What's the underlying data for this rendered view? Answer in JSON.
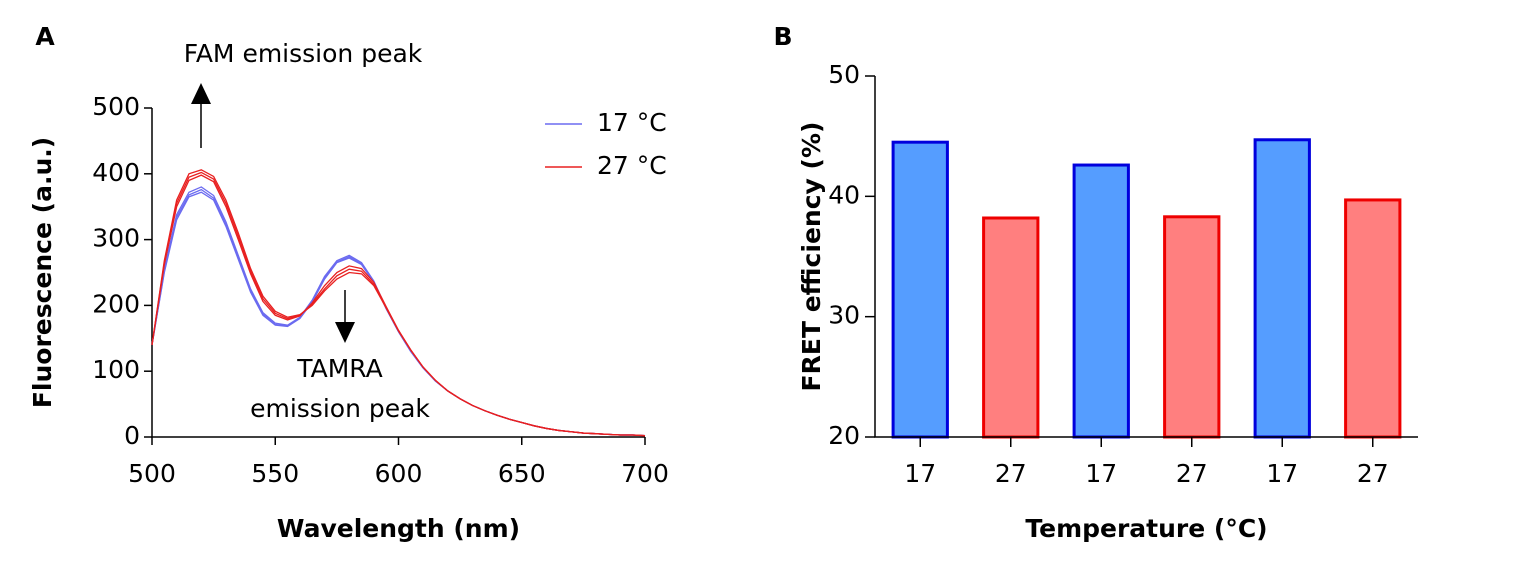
{
  "chart_data": [
    {
      "type": "line",
      "panel": "A",
      "xlabel": "Wavelength (nm)",
      "ylabel": "Fluorescence (a.u.)",
      "annotations": [
        "FAM emission peak",
        "TAMRA",
        "emission peak"
      ],
      "x": [
        500,
        505,
        510,
        515,
        520,
        525,
        530,
        535,
        540,
        545,
        550,
        555,
        560,
        565,
        570,
        575,
        580,
        585,
        590,
        595,
        600,
        605,
        610,
        615,
        620,
        625,
        630,
        635,
        640,
        645,
        650,
        655,
        660,
        665,
        670,
        675,
        680,
        685,
        690,
        695,
        700
      ],
      "xlim": [
        500,
        700
      ],
      "xticks": [
        500,
        550,
        600,
        650,
        700
      ],
      "ylim": [
        0,
        500
      ],
      "yticks": [
        0,
        100,
        200,
        300,
        400,
        500
      ],
      "series": [
        {
          "name": "17 °C",
          "color": "#6b6bf0",
          "lines": [
            [
              140,
              250,
              330,
              365,
              372,
              360,
              320,
              270,
              220,
              185,
              170,
              168,
              180,
              205,
              240,
              265,
              272,
              262,
              235,
              195,
              160,
              130,
              105,
              85,
              70,
              58,
              48,
              40,
              33,
              27,
              22,
              17,
              13,
              10,
              8,
              6,
              5,
              4,
              3,
              3,
              2
            ],
            [
              140,
              255,
              338,
              372,
              380,
              367,
              327,
              276,
              225,
              189,
              173,
              170,
              182,
              208,
              244,
              268,
              276,
              265,
              237,
              196,
              160,
              130,
              105,
              85,
              70,
              58,
              48,
              40,
              33,
              27,
              22,
              17,
              13,
              10,
              8,
              6,
              5,
              4,
              3,
              3,
              2
            ],
            [
              140,
              252,
              334,
              368,
              376,
              363,
              323,
              272,
              222,
              187,
              171,
              169,
              181,
              206,
              242,
              266,
              274,
              263,
              236,
              195,
              160,
              130,
              105,
              85,
              70,
              58,
              48,
              40,
              33,
              27,
              22,
              17,
              13,
              10,
              8,
              6,
              5,
              4,
              3,
              3,
              2
            ]
          ]
        },
        {
          "name": "27 °C",
          "color": "#e82020",
          "lines": [
            [
              140,
              265,
              355,
              395,
              402,
              392,
              355,
              305,
              252,
              210,
              188,
              180,
              185,
              202,
              225,
              245,
              255,
              252,
              232,
              197,
              162,
              132,
              106,
              86,
              70,
              58,
              48,
              40,
              33,
              27,
              22,
              17,
              13,
              10,
              8,
              6,
              5,
              4,
              3,
              3,
              2
            ],
            [
              140,
              262,
              350,
              390,
              398,
              388,
              350,
              300,
              248,
              206,
              185,
              178,
              184,
              204,
              230,
              250,
              260,
              256,
              235,
              198,
              162,
              132,
              106,
              86,
              70,
              58,
              48,
              40,
              33,
              27,
              22,
              17,
              13,
              10,
              8,
              6,
              5,
              4,
              3,
              3,
              2
            ],
            [
              140,
              268,
              360,
              400,
              406,
              396,
              360,
              310,
              256,
              214,
              191,
              182,
              186,
              200,
              222,
              240,
              250,
              248,
              230,
              196,
              161,
              132,
              106,
              86,
              70,
              58,
              48,
              40,
              33,
              27,
              22,
              17,
              13,
              10,
              8,
              6,
              5,
              4,
              3,
              3,
              2
            ]
          ]
        }
      ]
    },
    {
      "type": "bar",
      "panel": "B",
      "xlabel": "Temperature (°C)",
      "ylabel": "FRET efficiency (%)",
      "categories": [
        "17",
        "27",
        "17",
        "27",
        "17",
        "27"
      ],
      "values": [
        44.5,
        38.2,
        42.6,
        38.3,
        44.7,
        39.7
      ],
      "colors": [
        "#559dff",
        "#ff7f7f",
        "#559dff",
        "#ff7f7f",
        "#559dff",
        "#ff7f7f"
      ],
      "edgecolors": [
        "#0000dd",
        "#ee0000",
        "#0000dd",
        "#ee0000",
        "#0000dd",
        "#ee0000"
      ],
      "ylim": [
        20,
        50
      ],
      "yticks": [
        20,
        30,
        40,
        50
      ]
    }
  ]
}
